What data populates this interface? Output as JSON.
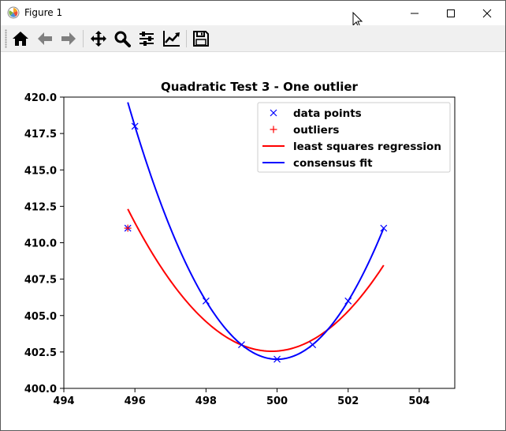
{
  "window": {
    "title": "Figure 1"
  },
  "toolbar": {
    "buttons": [
      {
        "name": "home-icon",
        "tooltip": "Home"
      },
      {
        "name": "back-arrow-icon",
        "tooltip": "Back"
      },
      {
        "name": "forward-arrow-icon",
        "tooltip": "Forward"
      },
      {
        "name": "pan-icon",
        "tooltip": "Pan"
      },
      {
        "name": "zoom-icon",
        "tooltip": "Zoom"
      },
      {
        "name": "subplots-icon",
        "tooltip": "Subplots"
      },
      {
        "name": "customize-icon",
        "tooltip": "Customize"
      },
      {
        "name": "save-icon",
        "tooltip": "Save"
      }
    ]
  },
  "colors": {
    "data_points": "#0000ff",
    "outliers": "#ff0000",
    "least_squares": "#ff0000",
    "consensus": "#0000ff"
  },
  "chart_data": {
    "type": "scatter",
    "title": "Quadratic Test 3 - One outlier",
    "xlabel": "",
    "ylabel": "",
    "xlim": [
      494,
      505
    ],
    "ylim": [
      400,
      420
    ],
    "xticks": [
      "494",
      "496",
      "498",
      "500",
      "502",
      "504"
    ],
    "yticks": [
      "400.0",
      "402.5",
      "405.0",
      "407.5",
      "410.0",
      "412.5",
      "415.0",
      "417.5",
      "420.0"
    ],
    "legend_position": "top-right",
    "series": [
      {
        "name": "data points",
        "kind": "marker-x",
        "points": [
          [
            495.8,
            411
          ],
          [
            496,
            418
          ],
          [
            498,
            406
          ],
          [
            499,
            403
          ],
          [
            500,
            402
          ],
          [
            501,
            403
          ],
          [
            502,
            406
          ],
          [
            503,
            411
          ]
        ]
      },
      {
        "name": "outliers",
        "kind": "marker-plus",
        "points": [
          [
            495.8,
            411
          ]
        ]
      },
      {
        "name": "least squares regression",
        "kind": "line",
        "coefficients": [
          0.5952,
          499.85,
          402.55
        ],
        "x_range": [
          495.8,
          503
        ]
      },
      {
        "name": "consensus fit",
        "kind": "line",
        "coefficients": [
          1.0,
          500.0,
          402.0
        ],
        "x_range": [
          495.8,
          503
        ]
      }
    ]
  }
}
